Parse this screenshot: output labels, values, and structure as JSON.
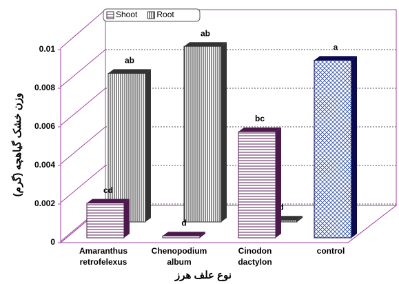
{
  "chart_data": {
    "type": "bar3d",
    "categories": [
      "Amaranthus retrofelexus",
      "Chenopodium album",
      "Cinodon dactylon",
      "control"
    ],
    "series": [
      {
        "name": "Shoot",
        "color": "#4b1a4b",
        "patterns": [
          "hlines",
          "hlines",
          "hlines",
          "crosshatch"
        ],
        "side_colors": [
          "#4b1a4b",
          "#4b1a4b",
          "#4b1a4b",
          "#0a0a50"
        ],
        "values": [
          0.0018,
          0.0001,
          0.0055,
          0.0092
        ],
        "letters": [
          "cd",
          "d",
          "bc",
          "a"
        ]
      },
      {
        "name": "Root",
        "color": "#333333",
        "patterns": [
          "vlines",
          "vlines",
          "vlines",
          "vlines"
        ],
        "side_colors": [
          "#333333",
          "#333333",
          "#333333",
          "#333333"
        ],
        "values": [
          0.0077,
          0.0091,
          0.0001,
          null
        ],
        "letters": [
          "ab",
          "ab",
          "d",
          null
        ]
      }
    ],
    "ylim": [
      0,
      0.01
    ],
    "yticks": [
      0,
      0.002,
      0.004,
      0.006,
      0.008,
      0.01
    ],
    "grid": true,
    "y_label": "وزن خشک گیاهچه (گرم)",
    "x_label": "نوع علف هرز",
    "legend": "top"
  }
}
